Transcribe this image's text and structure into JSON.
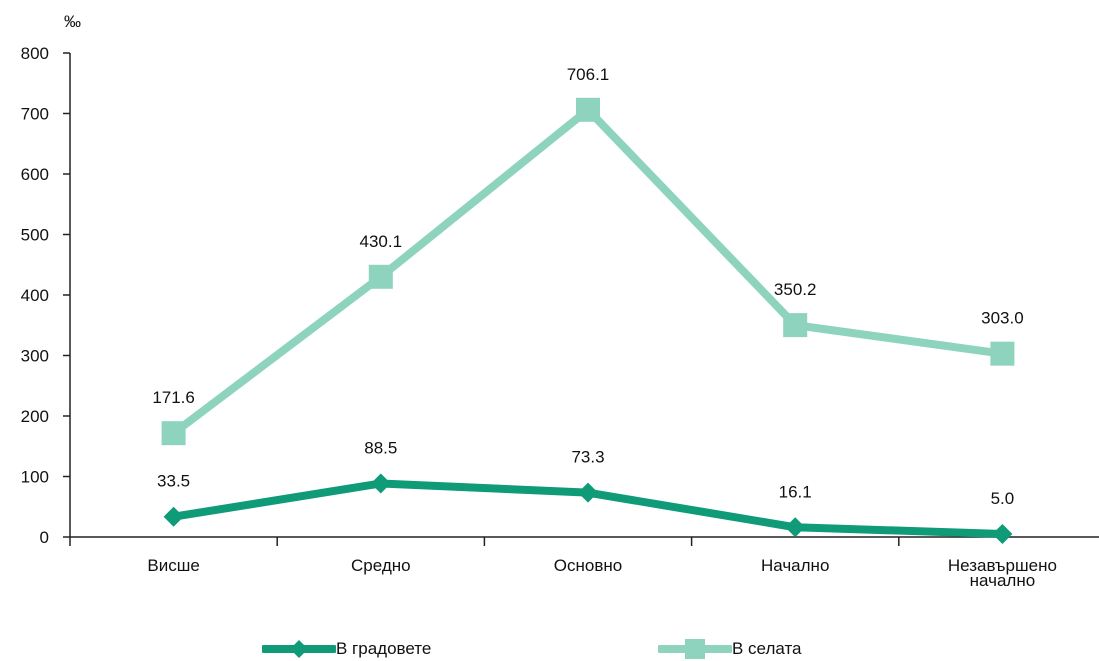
{
  "chart_data": {
    "type": "line",
    "unit_label": "‰",
    "categories": [
      "Висше",
      "Средно",
      "Основно",
      "Начално",
      "Незавършено\nначално"
    ],
    "series": [
      {
        "name": "В градовете",
        "values": [
          33.5,
          88.5,
          73.3,
          16.1,
          5.0
        ],
        "labels": [
          "33.5",
          "88.5",
          "73.3",
          "16.1",
          "5.0"
        ],
        "color": "#0f9a78",
        "marker": "diamond"
      },
      {
        "name": "В селата",
        "values": [
          171.6,
          430.1,
          706.1,
          350.2,
          303.0
        ],
        "labels": [
          "171.6",
          "430.1",
          "706.1",
          "350.2",
          "303.0"
        ],
        "color": "#8ed3bd",
        "marker": "square"
      }
    ],
    "ylim": [
      0,
      800
    ],
    "yticks": [
      0,
      100,
      200,
      300,
      400,
      500,
      600,
      700,
      800
    ],
    "grid": false,
    "legend": "bottom"
  }
}
